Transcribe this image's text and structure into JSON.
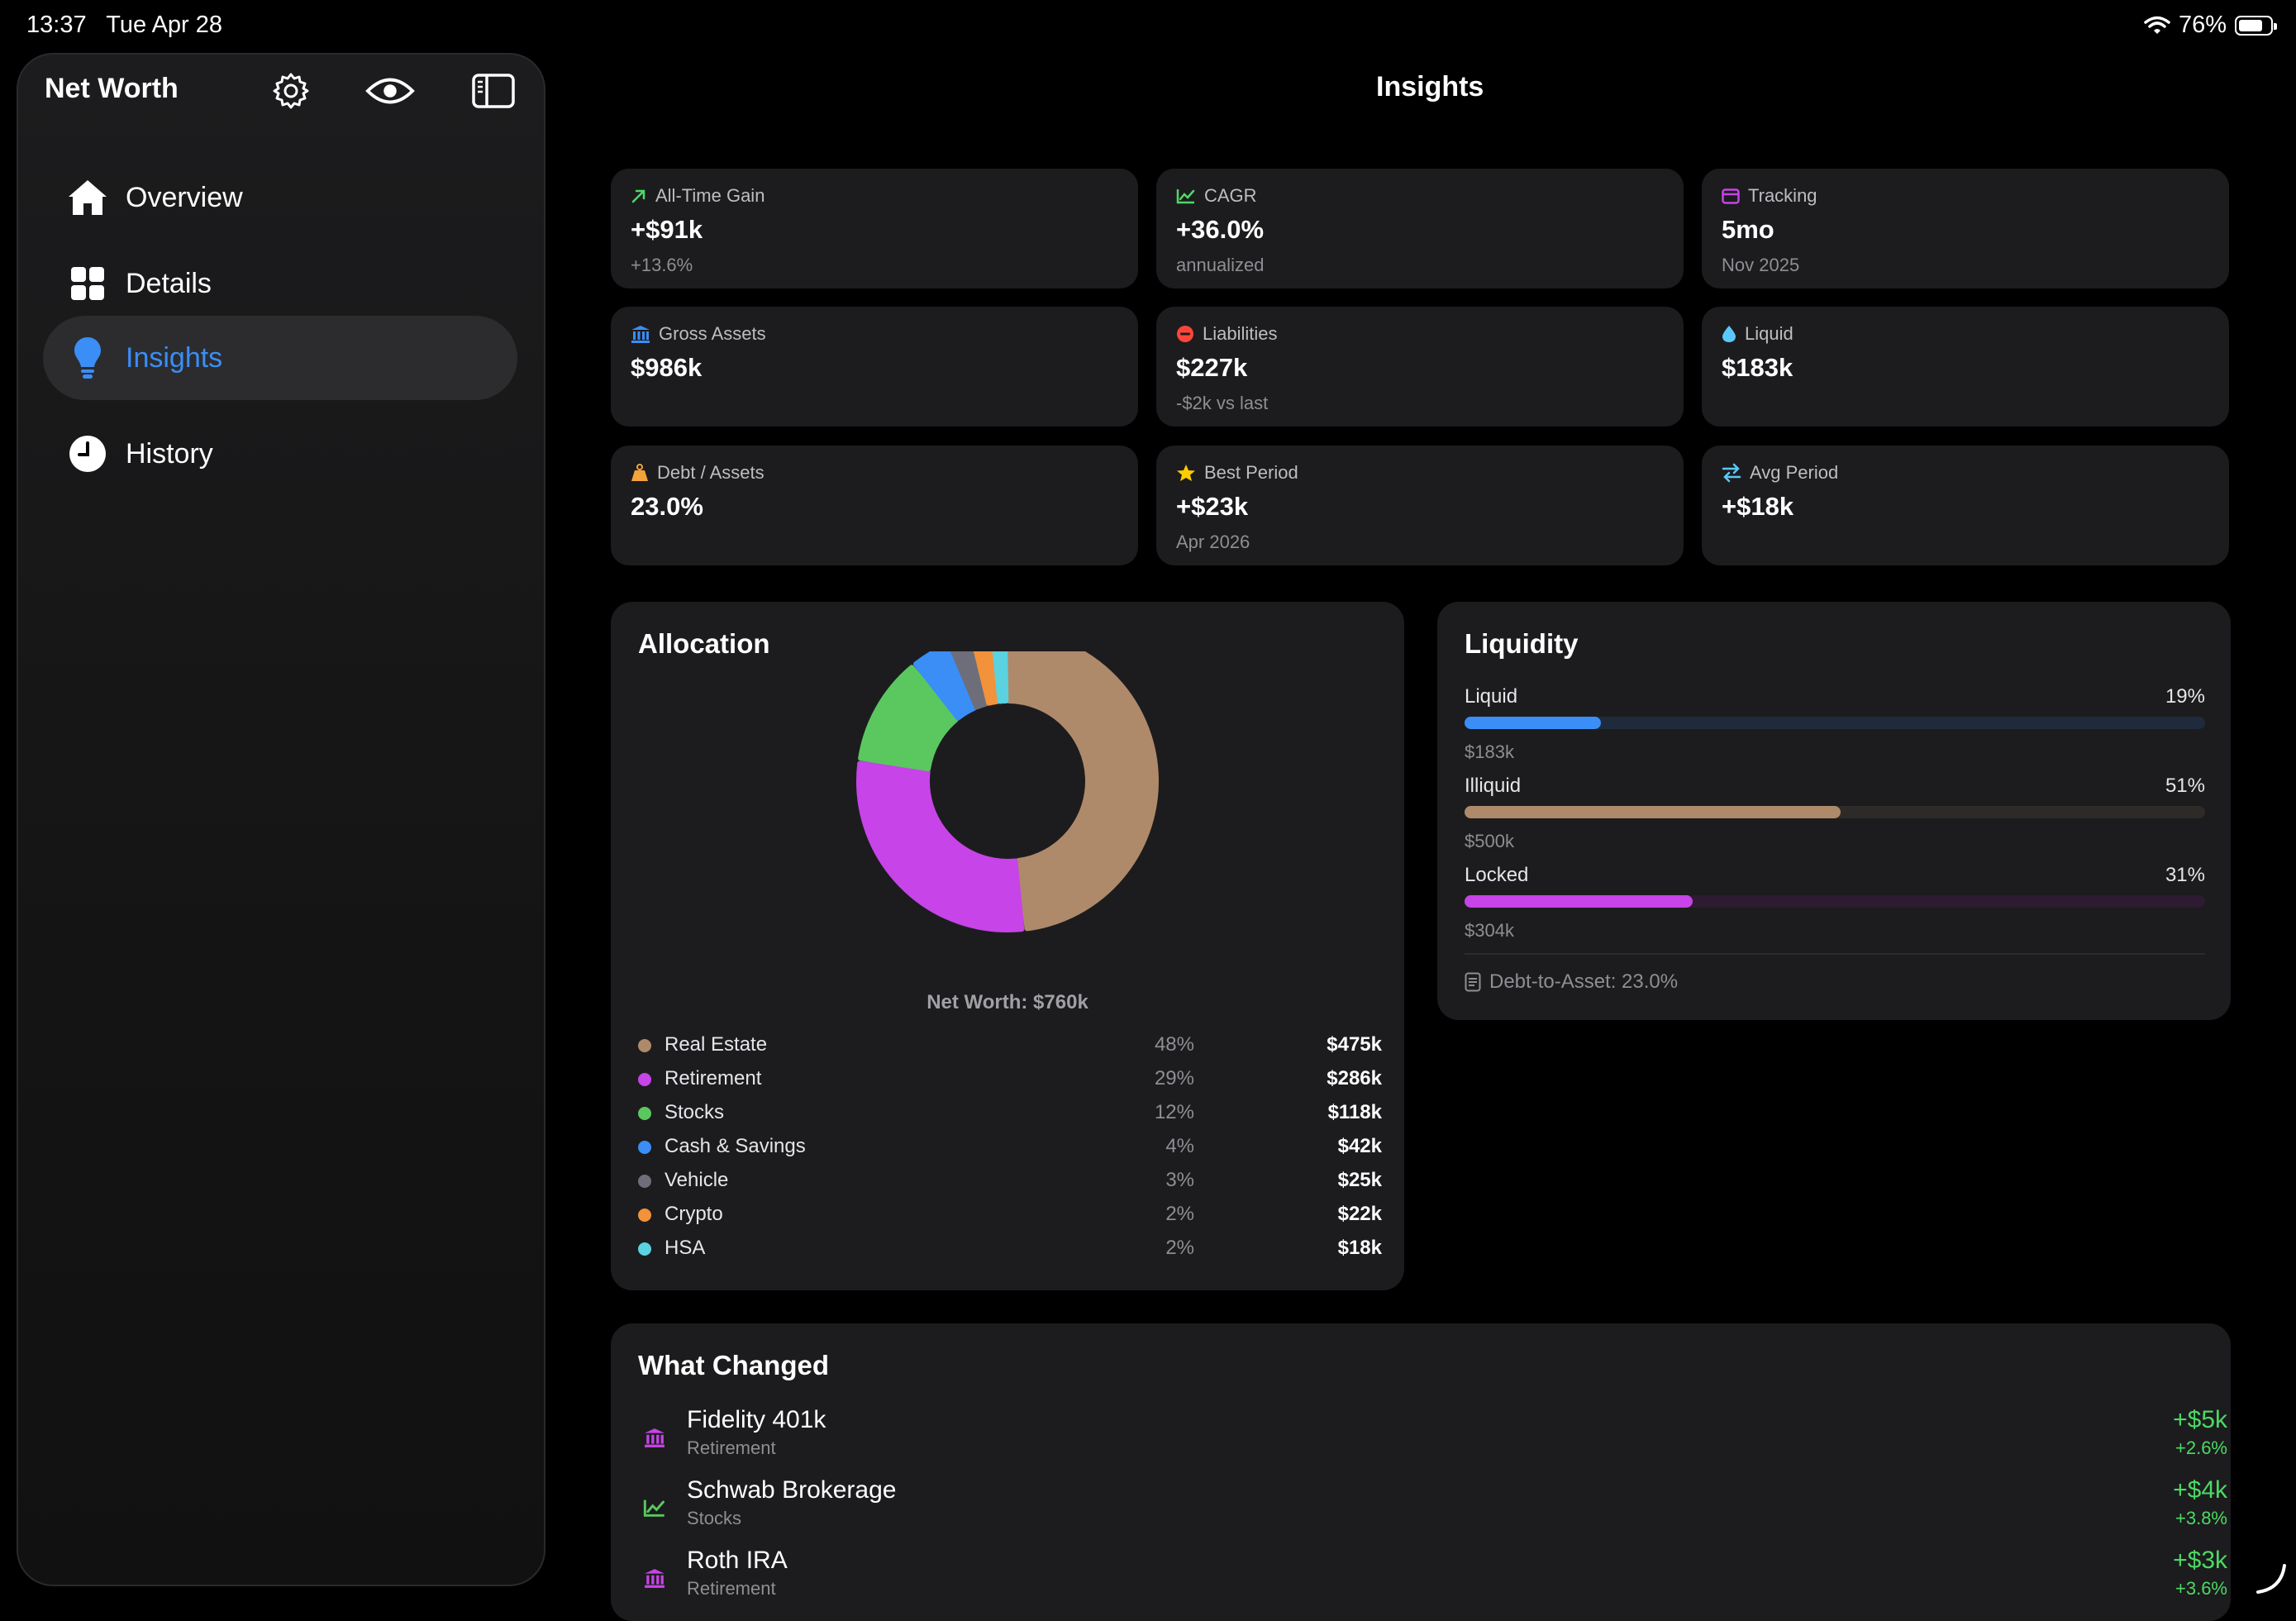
{
  "status_bar": {
    "time": "13:37",
    "date": "Tue Apr 28",
    "battery": "76%",
    "battery_level": 0.76
  },
  "sidebar": {
    "title": "Net Worth",
    "icons": [
      "gear-icon",
      "eye-icon",
      "sidebar-toggle-icon"
    ],
    "items": [
      {
        "label": "Overview",
        "icon": "house-icon",
        "active": false
      },
      {
        "label": "Details",
        "icon": "grid-icon",
        "active": false
      },
      {
        "label": "Insights",
        "icon": "lightbulb-icon",
        "active": true
      },
      {
        "label": "History",
        "icon": "clock-icon",
        "active": false
      }
    ]
  },
  "header": {
    "title": "Insights"
  },
  "stats": [
    {
      "label": "All-Time Gain",
      "value": "+$91k",
      "sub": "+13.6%",
      "icon": "arrow-up-right-icon",
      "color": "#4cd964"
    },
    {
      "label": "CAGR",
      "value": "+36.0%",
      "sub": "annualized",
      "icon": "chart-line-icon",
      "color": "#4cd964"
    },
    {
      "label": "Tracking",
      "value": "5mo",
      "sub": "Nov 2025",
      "icon": "calendar-icon",
      "color": "#c644e8"
    },
    {
      "label": "Gross Assets",
      "value": "$986k",
      "sub": "",
      "icon": "bank-icon",
      "color": "#3a8ef6"
    },
    {
      "label": "Liabilities",
      "value": "$227k",
      "sub": "-$2k vs last",
      "icon": "minus-circle-icon",
      "color": "#ff453a"
    },
    {
      "label": "Liquid",
      "value": "$183k",
      "sub": "",
      "icon": "drop-icon",
      "color": "#5ac8fa"
    },
    {
      "label": "Debt / Assets",
      "value": "23.0%",
      "sub": "",
      "icon": "weight-icon",
      "color": "#f2a33a"
    },
    {
      "label": "Best Period",
      "value": "+$23k",
      "sub": "Apr 2026",
      "icon": "star-icon",
      "color": "#ffcc00"
    },
    {
      "label": "Avg Period",
      "value": "+$18k",
      "sub": "",
      "icon": "arrows-swap-icon",
      "color": "#5ac8fa"
    }
  ],
  "allocation": {
    "title": "Allocation",
    "center_label": "Net Worth: $760k",
    "items": [
      {
        "name": "Real Estate",
        "pct": "48%",
        "value": "$475k",
        "color": "#ae8a6a"
      },
      {
        "name": "Retirement",
        "pct": "29%",
        "value": "$286k",
        "color": "#c644e8"
      },
      {
        "name": "Stocks",
        "pct": "12%",
        "value": "$118k",
        "color": "#5ac85f"
      },
      {
        "name": "Cash & Savings",
        "pct": "4%",
        "value": "$42k",
        "color": "#3a8ef6"
      },
      {
        "name": "Vehicle",
        "pct": "3%",
        "value": "$25k",
        "color": "#6e6e7a"
      },
      {
        "name": "Crypto",
        "pct": "2%",
        "value": "$22k",
        "color": "#f2923a"
      },
      {
        "name": "HSA",
        "pct": "2%",
        "value": "$18k",
        "color": "#5ad2e0"
      }
    ]
  },
  "chart_data": {
    "type": "pie",
    "categories": [
      "Real Estate",
      "Retirement",
      "Stocks",
      "Cash & Savings",
      "Vehicle",
      "Crypto",
      "HSA"
    ],
    "values": [
      475,
      286,
      118,
      42,
      25,
      22,
      18
    ],
    "title": "Allocation",
    "center_label": "Net Worth: $760k",
    "legend": "bottom"
  },
  "liquidity": {
    "title": "Liquidity",
    "rows": [
      {
        "label": "Liquid",
        "pct": "19%",
        "fraction": 0.19,
        "amount": "$183k",
        "color": "#3a8ef6",
        "track": "#1f2a3c"
      },
      {
        "label": "Illiquid",
        "pct": "51%",
        "fraction": 0.51,
        "amount": "$500k",
        "color": "#ae8a6a",
        "track": "#2e2a27"
      },
      {
        "label": "Locked",
        "pct": "31%",
        "fraction": 0.31,
        "amount": "$304k",
        "color": "#c644e8",
        "track": "#2c1b31"
      }
    ],
    "footer": "Debt-to-Asset: 23.0%"
  },
  "what_changed": {
    "title": "What Changed",
    "items": [
      {
        "name": "Fidelity 401k",
        "category": "Retirement",
        "delta": "+$5k",
        "pct": "+2.6%",
        "icon": "bank-icon",
        "color": "#c644e8"
      },
      {
        "name": "Schwab Brokerage",
        "category": "Stocks",
        "delta": "+$4k",
        "pct": "+3.8%",
        "icon": "chart-line-icon",
        "color": "#5ac85f"
      },
      {
        "name": "Roth IRA",
        "category": "Retirement",
        "delta": "+$3k",
        "pct": "+3.6%",
        "icon": "bank-icon",
        "color": "#c644e8"
      }
    ]
  }
}
